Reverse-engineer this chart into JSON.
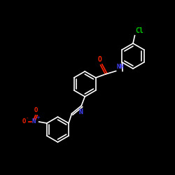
{
  "bg_color": "#000000",
  "bond_color": "#ffffff",
  "o_color": "#ff2200",
  "n_color": "#4444ff",
  "cl_color": "#00cc00",
  "lw": 1.2,
  "ring_r": 0.72,
  "rings": {
    "central": [
      4.85,
      5.2
    ],
    "chlorophenyl": [
      7.6,
      6.8
    ],
    "nitrophenyl": [
      3.3,
      2.6
    ]
  },
  "xlim": [
    0,
    10
  ],
  "ylim": [
    0,
    10
  ]
}
